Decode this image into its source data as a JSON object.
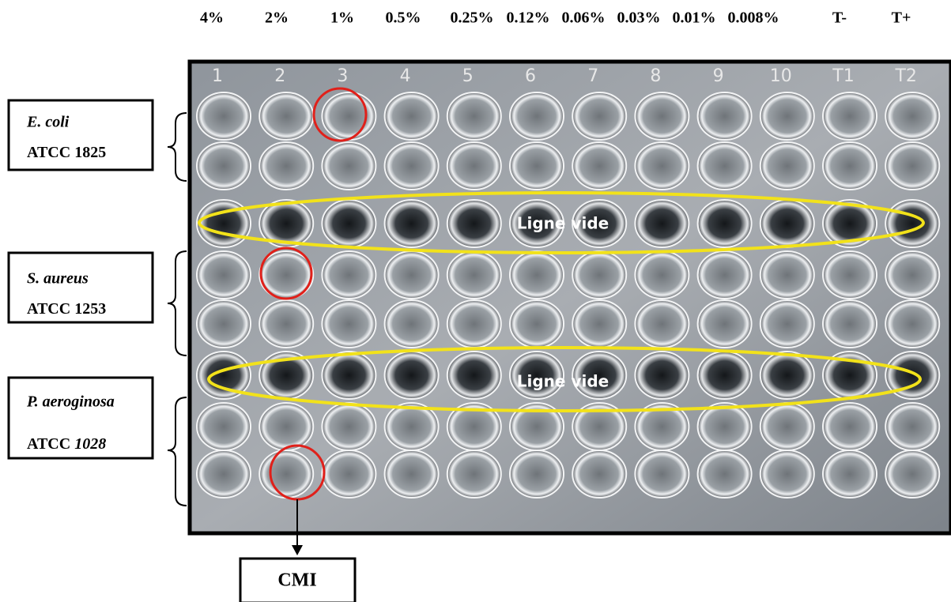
{
  "header": {
    "concentrations": [
      "4%",
      "2%",
      "1%",
      "0.5%",
      "0.25%",
      "0.12%",
      "0.06%",
      "0.03%",
      "0.01%",
      "0.008%",
      "T-",
      "T+"
    ]
  },
  "plate": {
    "column_numbers": [
      "1",
      "2",
      "3",
      "4",
      "5",
      "6",
      "7",
      "8",
      "9",
      "10",
      "T1",
      "T2"
    ],
    "empty_rows": [
      "Ligne vide",
      "Ligne vide"
    ]
  },
  "strains": [
    {
      "name": "E. coli",
      "collection": "ATCC",
      "number": "1825"
    },
    {
      "name": "S. aureus",
      "collection": "ATCC",
      "number": "1253"
    },
    {
      "name": "P. aeroginosa",
      "collection": "ATCC",
      "number": "1028"
    }
  ],
  "result_label": "CMI"
}
